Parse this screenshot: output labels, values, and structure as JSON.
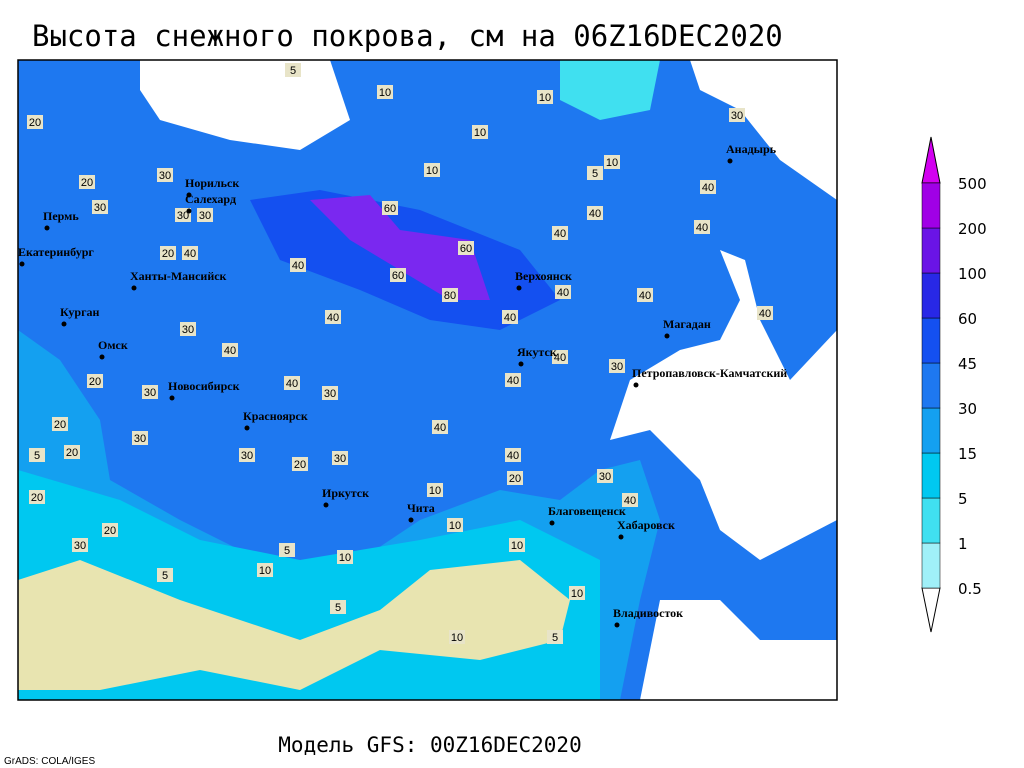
{
  "title": "Высота снежного покрова, см на 06Z16DEC2020",
  "footer": "Модель GFS: 00Z16DEC2020",
  "credit": "GrADS: COLA/IGES",
  "legend": {
    "levels": [
      0.5,
      1,
      5,
      15,
      30,
      45,
      60,
      100,
      200,
      500
    ],
    "colors": [
      "#ffffff",
      "#a0f0f8",
      "#40e0f0",
      "#00c8f0",
      "#14a0f0",
      "#1e78f0",
      "#1450f0",
      "#2828e6",
      "#6a14e6",
      "#a000e6",
      "#d200f0"
    ]
  },
  "cities": [
    "Норильск",
    "Салехард",
    "Пермь",
    "Екатеринбург",
    "Ханты-Мансийск",
    "Курган",
    "Омск",
    "Новосибирск",
    "Красноярск",
    "Иркутск",
    "Чита",
    "Верхоянск",
    "Якутск",
    "Магадан",
    "Петропавловск-Камчатский",
    "Анадырь",
    "Благовещенск",
    "Хабаровск",
    "Владивосток"
  ],
  "contour_labels": [
    20,
    20,
    30,
    30,
    30,
    30,
    20,
    40,
    40,
    10,
    10,
    10,
    10,
    10,
    40,
    40,
    40,
    40,
    40,
    40,
    40,
    80,
    60,
    60,
    60,
    40,
    40,
    30,
    40,
    30,
    30,
    20,
    20,
    20,
    30,
    30,
    20,
    30,
    40,
    40,
    20,
    40,
    40,
    30,
    30,
    40,
    10,
    10,
    10,
    10,
    5,
    10,
    5,
    5,
    10,
    10,
    5,
    20,
    30,
    20,
    5,
    30,
    40,
    5,
    5
  ]
}
